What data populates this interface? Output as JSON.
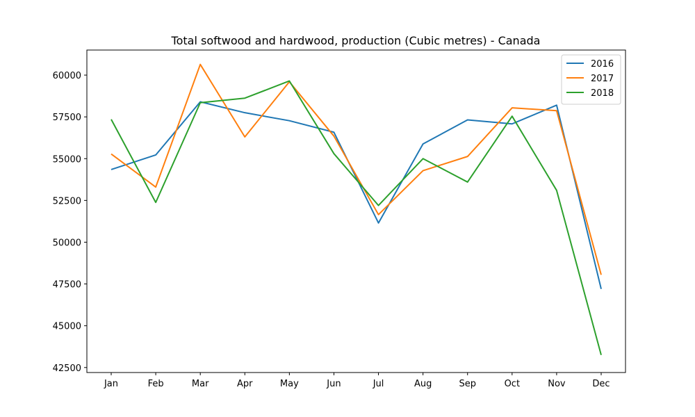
{
  "chart_data": {
    "type": "line",
    "title": "Total softwood and hardwood, production (Cubic metres) - Canada",
    "xlabel": "",
    "ylabel": "",
    "categories": [
      "Jan",
      "Feb",
      "Mar",
      "Apr",
      "May",
      "Jun",
      "Jul",
      "Aug",
      "Sep",
      "Oct",
      "Nov",
      "Dec"
    ],
    "ylim": [
      42200,
      61500
    ],
    "yticks": [
      42500,
      45000,
      47500,
      50000,
      52500,
      55000,
      57500,
      60000
    ],
    "grid": false,
    "legend_position": "top-right",
    "series": [
      {
        "name": "2016",
        "color": "#1f77b4",
        "values": [
          54350,
          55220,
          58400,
          57750,
          57270,
          56580,
          51150,
          55880,
          57320,
          57080,
          58200,
          47200
        ]
      },
      {
        "name": "2017",
        "color": "#ff7f0e",
        "values": [
          55280,
          53300,
          60640,
          56300,
          59600,
          56350,
          51650,
          54280,
          55130,
          58040,
          57870,
          48050
        ]
      },
      {
        "name": "2018",
        "color": "#2ca02c",
        "values": [
          57350,
          52380,
          58350,
          58620,
          59650,
          55300,
          52200,
          55000,
          53600,
          57540,
          53100,
          43250
        ]
      }
    ]
  }
}
